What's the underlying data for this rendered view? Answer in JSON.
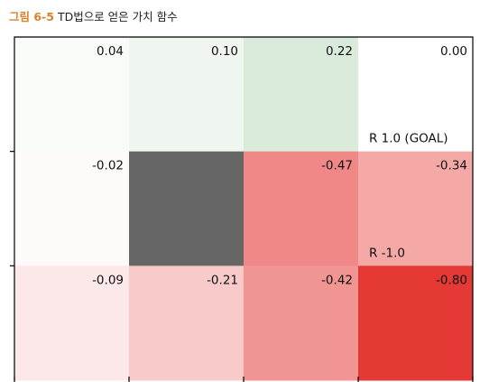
{
  "caption": {
    "figure_label": "그림 6-5",
    "text": "TD법으로 얻은 가치 함수"
  },
  "chart_data": {
    "type": "heatmap",
    "rows": 3,
    "cols": 4,
    "values": [
      [
        0.04,
        0.1,
        0.22,
        0.0
      ],
      [
        -0.02,
        null,
        -0.47,
        -0.34
      ],
      [
        -0.09,
        -0.21,
        -0.42,
        -0.8
      ]
    ],
    "value_labels": [
      [
        "0.04",
        "0.10",
        "0.22",
        "0.00"
      ],
      [
        "-0.02",
        "",
        "-0.47",
        "-0.34"
      ],
      [
        "-0.09",
        "-0.21",
        "-0.42",
        "-0.80"
      ]
    ],
    "wall": {
      "row": 1,
      "col": 1
    },
    "rewards": [
      {
        "row": 0,
        "col": 3,
        "label": "R 1.0 (GOAL)"
      },
      {
        "row": 1,
        "col": 3,
        "label": "R -1.0"
      }
    ],
    "colors": {
      "positive": "#2e8b2e",
      "negative": "#e53935",
      "wall": "#666666",
      "white": "#ffffff"
    },
    "color_range": [
      -0.8,
      0.8
    ]
  }
}
